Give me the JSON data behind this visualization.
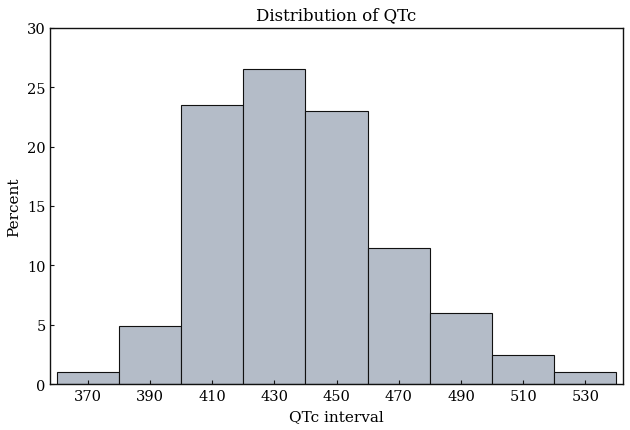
{
  "title": "Distribution of QTc",
  "xlabel": "QTc interval",
  "ylabel": "Percent",
  "bar_left_edges": [
    360,
    380,
    400,
    420,
    440,
    460,
    480,
    500,
    520
  ],
  "bar_heights": [
    1.0,
    4.9,
    23.5,
    26.5,
    23.0,
    11.5,
    6.0,
    2.5,
    1.0
  ],
  "bin_width": 20,
  "bar_color": "#b4bcc8",
  "bar_edgecolor": "#111111",
  "xlim": [
    358,
    542
  ],
  "ylim": [
    0,
    30
  ],
  "xticks": [
    370,
    390,
    410,
    430,
    450,
    470,
    490,
    510,
    530
  ],
  "yticks": [
    0,
    5,
    10,
    15,
    20,
    25,
    30
  ],
  "title_fontsize": 12,
  "label_fontsize": 11,
  "tick_fontsize": 10.5,
  "background_color": "#ffffff",
  "font_family": "serif"
}
